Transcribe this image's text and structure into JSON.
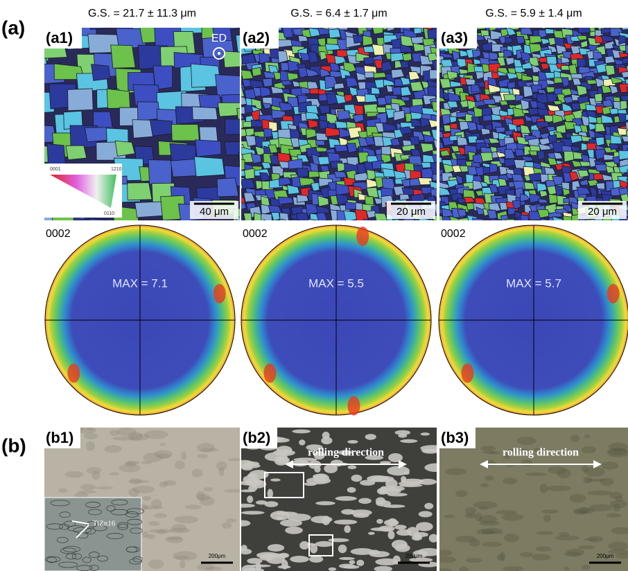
{
  "figure": {
    "a_label": "(a)",
    "b_label": "(b)",
    "ed_label": "ED",
    "ipf_labels": [
      "0001",
      "1210",
      "0110"
    ],
    "panels_a": [
      {
        "label": "(a1)",
        "grain_size": "G.S. = 21.7 ± 11.3 μm",
        "scale_bar": "40 μm",
        "pole": "0002",
        "max": "MAX =  7.1"
      },
      {
        "label": "(a2)",
        "grain_size": "G.S. = 6.4 ± 1.7 μm",
        "scale_bar": "20 μm",
        "pole": "0002",
        "max": "MAX =  5.5"
      },
      {
        "label": "(a3)",
        "grain_size": "G.S. = 5.9 ± 1.4 μm",
        "scale_bar": "20 μm",
        "pole": "0002",
        "max": "MAX =  5.7"
      }
    ],
    "panels_b": [
      {
        "label": "(b1)",
        "annotation": "TiZn16",
        "scale_bar": "200μm"
      },
      {
        "label": "(b2)",
        "annotation": "rolling direction",
        "scale_bar": "200μm"
      },
      {
        "label": "(b3)",
        "annotation": "rolling direction",
        "scale_bar": "200μm"
      }
    ]
  }
}
